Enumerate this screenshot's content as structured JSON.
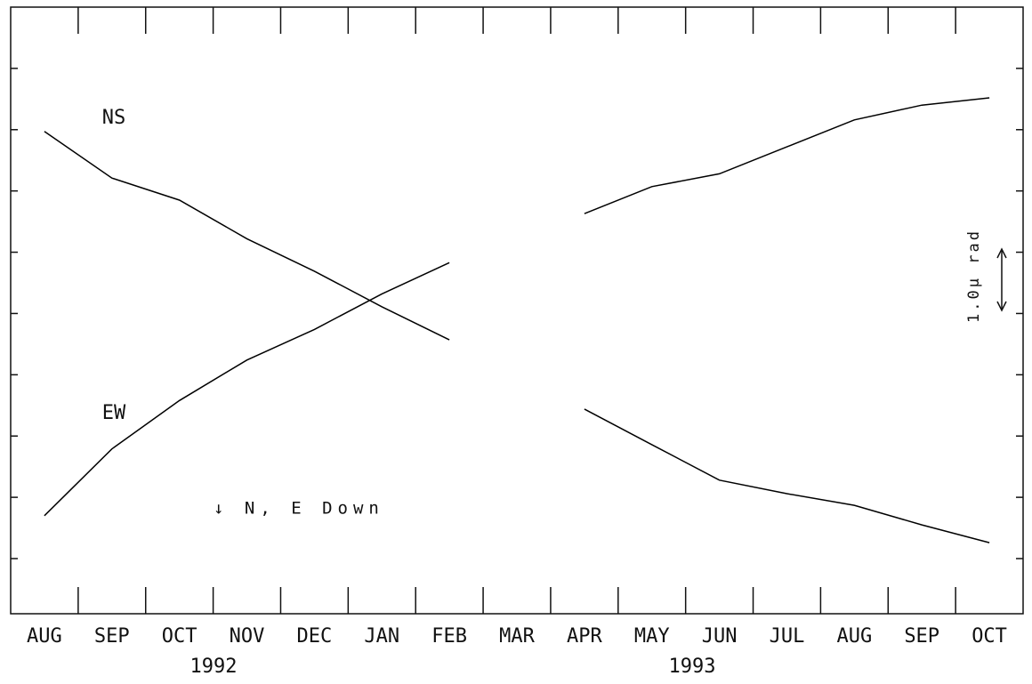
{
  "chart_data": {
    "type": "line",
    "categories": [
      "AUG",
      "SEP",
      "OCT",
      "NOV",
      "DEC",
      "JAN",
      "FEB",
      "MAR",
      "APR",
      "MAY",
      "JUN",
      "JUL",
      "AUG",
      "SEP",
      "OCT"
    ],
    "series": [
      {
        "name": "NS",
        "color": "#000000",
        "values": [
          7.97,
          7.21,
          6.85,
          6.22,
          5.69,
          5.11,
          4.57,
          null,
          3.44,
          2.86,
          2.28,
          2.06,
          1.87,
          1.55,
          1.26
        ]
      },
      {
        "name": "EW",
        "color": "#000000",
        "values": [
          1.7,
          2.79,
          3.58,
          4.24,
          4.74,
          5.32,
          5.83,
          null,
          6.63,
          7.07,
          7.28,
          7.72,
          8.16,
          8.4,
          8.52
        ]
      }
    ],
    "ylim": [
      0.1,
      10
    ],
    "yticks": [
      1,
      2,
      3,
      4,
      5,
      6,
      7,
      8,
      9
    ],
    "annotations": [
      "↓ N, E Down",
      "1.0μ rad"
    ],
    "year_labels": [
      "1992",
      "1993"
    ]
  }
}
